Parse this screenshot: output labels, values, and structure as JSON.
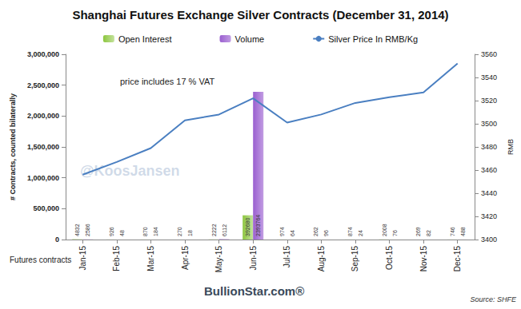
{
  "chart_data": {
    "type": "bar",
    "title": "Shanghai Futures Exchange Silver Contracts (December 31, 2014)",
    "categories": [
      "Jan-15",
      "Feb-15",
      "Mar-15",
      "Apr-15",
      "May-15",
      "Jun-15",
      "Jul-15",
      "Aug-15",
      "Sep-15",
      "Oct-15",
      "Nov-15",
      "Dec-15"
    ],
    "series": [
      {
        "name": "Open Interest",
        "type": "bar",
        "color": "#8cc63e",
        "data_labels": true,
        "values": [
          4832,
          926,
          870,
          270,
          2222,
          392680,
          974,
          262,
          874,
          2008,
          269,
          746
        ]
      },
      {
        "name": "Volume",
        "type": "bar",
        "color": "#9a5fd0",
        "data_labels": true,
        "values": [
          2586,
          48,
          184,
          18,
          6112,
          2393764,
          64,
          96,
          24,
          76,
          82,
          488
        ]
      },
      {
        "name": "Silver Price In RMB/Kg",
        "type": "line",
        "color": "#4a7fc1",
        "axis": "y2",
        "values": [
          3456,
          3467,
          3479,
          3503,
          3508,
          3522,
          3501,
          3508,
          3518,
          3523,
          3527,
          3552
        ]
      }
    ],
    "y_label": "# Contracts, counted bilaterally",
    "y2_label": "RMB",
    "x_label": "Futures contracts",
    "ylim": [
      0,
      3000000
    ],
    "yticks": [
      0,
      {
        "value": 500000,
        "label": "500,000"
      },
      {
        "value": 1000000,
        "label": "1,000,000"
      },
      {
        "value": 1500000,
        "label": "1,500,000"
      },
      {
        "value": 2000000,
        "label": "2,000,000"
      },
      {
        "value": 2500000,
        "label": "2,500,000"
      },
      {
        "value": 3000000,
        "label": "3,000,000"
      }
    ],
    "y2lim": [
      3400,
      3560
    ],
    "y2ticks": [
      3400,
      3420,
      3440,
      3460,
      3480,
      3500,
      3520,
      3540,
      3560
    ],
    "annotations": [
      "price includes 17 % VAT",
      "@KoosJansen",
      "BullionStar.com®",
      "Source: SHFE"
    ],
    "legend": "top",
    "grid": false
  }
}
